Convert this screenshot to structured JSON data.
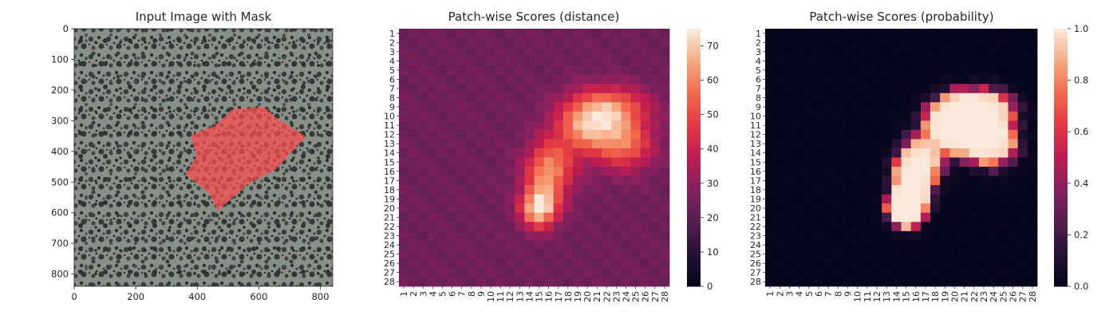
{
  "chart_data": [
    {
      "type": "image",
      "title": "Input Image with Mask",
      "xticks": [
        0,
        200,
        400,
        600,
        800
      ],
      "yticks": [
        0,
        100,
        200,
        300,
        400,
        500,
        600,
        700,
        800
      ],
      "xlim": [
        0,
        840
      ],
      "ylim": [
        840,
        0
      ],
      "mask_polygon": [
        [
          515,
          262
        ],
        [
          572,
          258
        ],
        [
          616,
          254
        ],
        [
          648,
          284
        ],
        [
          752,
          352
        ],
        [
          656,
          458
        ],
        [
          563,
          508
        ],
        [
          466,
          595
        ],
        [
          438,
          535
        ],
        [
          363,
          475
        ],
        [
          398,
          413
        ],
        [
          378,
          350
        ],
        [
          418,
          329
        ],
        [
          456,
          318
        ]
      ],
      "mask_color": "#ff4d4d"
    },
    {
      "type": "heatmap",
      "title": "Patch-wise Scores (distance)",
      "x_labels": [
        "1",
        "2",
        "3",
        "4",
        "5",
        "6",
        "7",
        "8",
        "9",
        "10",
        "11",
        "12",
        "13",
        "14",
        "15",
        "16",
        "17",
        "18",
        "19",
        "20",
        "21",
        "22",
        "23",
        "24",
        "25",
        "26",
        "27",
        "28"
      ],
      "y_labels": [
        "1",
        "2",
        "3",
        "4",
        "5",
        "6",
        "7",
        "8",
        "9",
        "10",
        "11",
        "12",
        "13",
        "14",
        "15",
        "16",
        "17",
        "18",
        "19",
        "20",
        "21",
        "22",
        "23",
        "24",
        "25",
        "26",
        "27",
        "28"
      ],
      "color_range": [
        0,
        75
      ],
      "colorbar_ticks": [
        0,
        10,
        20,
        30,
        40,
        50,
        60,
        70
      ],
      "colormap": "rocket",
      "value_model": {
        "baseline": 24,
        "peaks": [
          {
            "row": 20,
            "col": 15,
            "height": 50,
            "sigma_row": 1.5,
            "sigma_col": 1.3
          },
          {
            "row": 16,
            "col": 16,
            "height": 38,
            "sigma_row": 2.2,
            "sigma_col": 1.7
          },
          {
            "row": 11,
            "col": 20,
            "height": 40,
            "sigma_row": 2.2,
            "sigma_col": 2.3
          },
          {
            "row": 13,
            "col": 24,
            "height": 30,
            "sigma_row": 2.0,
            "sigma_col": 2.0
          },
          {
            "row": 9,
            "col": 23,
            "height": 26,
            "sigma_row": 1.6,
            "sigma_col": 2.5
          }
        ]
      }
    },
    {
      "type": "heatmap",
      "title": "Patch-wise Scores (probability)",
      "x_labels": [
        "1",
        "2",
        "3",
        "4",
        "5",
        "6",
        "7",
        "8",
        "9",
        "10",
        "11",
        "12",
        "13",
        "14",
        "15",
        "16",
        "17",
        "18",
        "19",
        "20",
        "21",
        "22",
        "23",
        "24",
        "25",
        "26",
        "27",
        "28"
      ],
      "y_labels": [
        "1",
        "2",
        "3",
        "4",
        "5",
        "6",
        "7",
        "8",
        "9",
        "10",
        "11",
        "12",
        "13",
        "14",
        "15",
        "16",
        "17",
        "18",
        "19",
        "20",
        "21",
        "22",
        "23",
        "24",
        "25",
        "26",
        "27",
        "28"
      ],
      "color_range": [
        0,
        1
      ],
      "colorbar_ticks": [
        0.0,
        0.2,
        0.4,
        0.6,
        0.8,
        1.0
      ],
      "colormap": "rocket",
      "value_model": {
        "transform": "logistic",
        "center": 40,
        "scale": 3.2
      }
    }
  ]
}
